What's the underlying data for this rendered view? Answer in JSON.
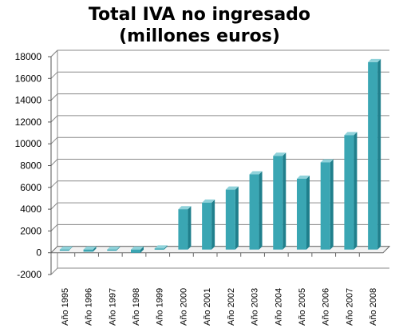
{
  "chart_data": {
    "type": "bar",
    "title_line1": "Total IVA no ingresado",
    "title_line2": "(millones euros)",
    "categories": [
      "Año 1995",
      "Año 1996",
      "Año 1997",
      "Año 1998",
      "Año 1999",
      "Año 2000",
      "Año 2001",
      "Año 2002",
      "Año 2003",
      "Año 2004",
      "Año 2005",
      "Año 2006",
      "Año 2007",
      "Año 2008"
    ],
    "values": [
      -50,
      -200,
      -80,
      -300,
      100,
      3700,
      4300,
      5500,
      6900,
      8600,
      6500,
      8000,
      10500,
      17200
    ],
    "ylim": [
      -2000,
      18000
    ],
    "yticks": [
      -2000,
      0,
      2000,
      4000,
      6000,
      8000,
      10000,
      12000,
      14000,
      16000,
      18000
    ],
    "grid": true,
    "bar_color": "#3aa6b3",
    "bar_dark": "#1f7f8c",
    "bar_light": "#8fd2da"
  }
}
